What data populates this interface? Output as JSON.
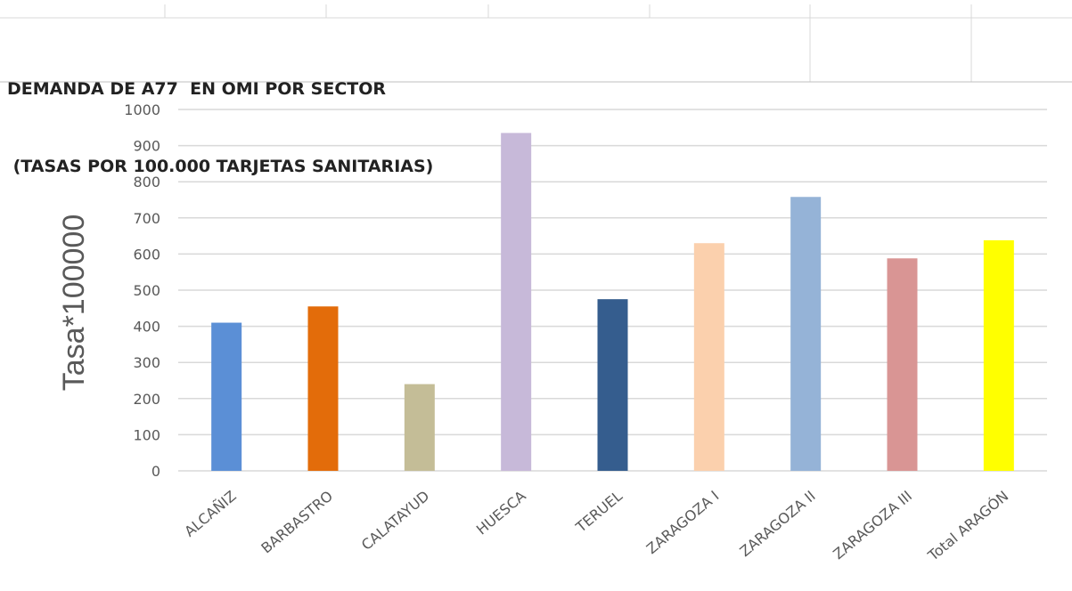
{
  "chart_data": {
    "type": "bar",
    "title": "DEMANDA DE A77  EN OMI POR SECTOR",
    "subtitle": " (TASAS POR 100.000 TARJETAS SANITARIAS)",
    "xlabel": "",
    "ylabel": "Tasa*100000",
    "ylim": [
      0,
      1000
    ],
    "yticks": [
      0,
      100,
      200,
      300,
      400,
      500,
      600,
      700,
      800,
      900,
      1000
    ],
    "grid": true,
    "legend": "none",
    "categories": [
      "ALCAÑIZ",
      "BARBASTRO",
      "CALATAYUD",
      "HUESCA",
      "TERUEL",
      "ZARAGOZA I",
      "ZARAGOZA II",
      "ZARAGOZA III",
      "Total ARAGÓN"
    ],
    "values": [
      410,
      455,
      240,
      935,
      475,
      630,
      758,
      588,
      638
    ],
    "colors": [
      "#5b8fd6",
      "#e36c0a",
      "#c4bd97",
      "#c7b9d9",
      "#355d8e",
      "#fbd0ad",
      "#95b3d7",
      "#d99594",
      "#ffff00"
    ]
  }
}
